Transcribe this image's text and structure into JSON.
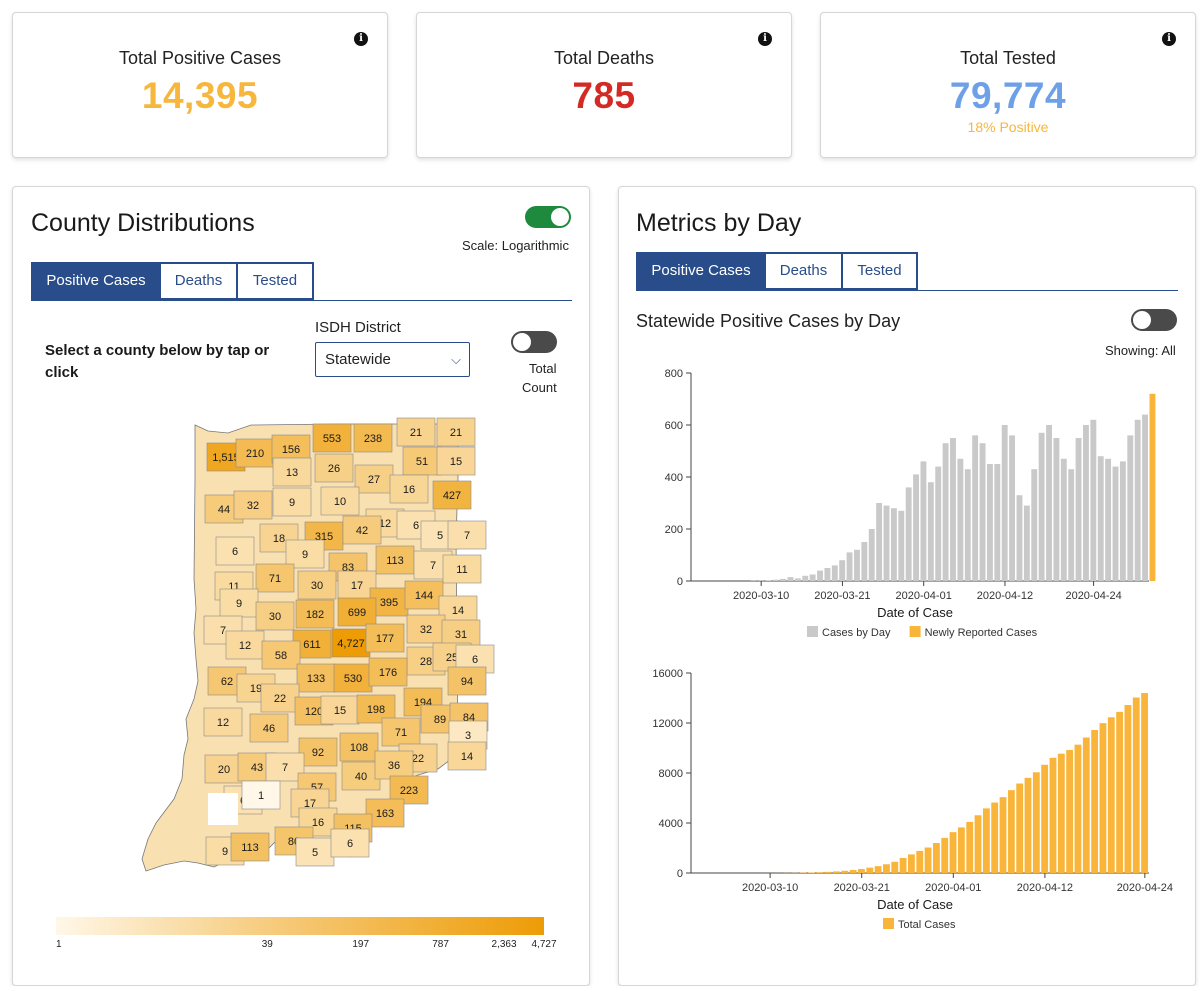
{
  "colors": {
    "positive": "#f6b73c",
    "deaths": "#d32a25",
    "tested": "#6ea0e8",
    "navy": "#284d8a",
    "gray_bar": "#c9c9c9",
    "orange_bar": "#f9b43a"
  },
  "stats": [
    {
      "title": "Total Positive Cases",
      "value": "14,395",
      "sub": ""
    },
    {
      "title": "Total Deaths",
      "value": "785",
      "sub": ""
    },
    {
      "title": "Total Tested",
      "value": "79,774",
      "sub": "18% Positive"
    }
  ],
  "info_icon": "i",
  "county": {
    "title": "County Distributions",
    "scale_label": "Scale: Logarithmic",
    "tabs": [
      "Positive Cases",
      "Deaths",
      "Tested"
    ],
    "select_prompt": "Select a county below by tap or click",
    "district_label": "ISDH District",
    "district_value": "Statewide",
    "chevron": "⌵",
    "total_count_label_1": "Total",
    "total_count_label_2": "Count",
    "legend_ticks": [
      "1",
      "39",
      "197",
      "787",
      "2,363",
      "4,727"
    ],
    "legend_tick_values": [
      1,
      39,
      197,
      787,
      2363,
      4727
    ],
    "map_labels": [
      [
        "1,515",
        1515
      ],
      [
        "210",
        210
      ],
      [
        "156",
        156
      ],
      [
        "553",
        553
      ],
      [
        "238",
        238
      ],
      [
        "21",
        21
      ],
      [
        "21",
        21
      ],
      [
        "13",
        13
      ],
      [
        "26",
        26
      ],
      [
        "51",
        51
      ],
      [
        "15",
        15
      ],
      [
        "27",
        27
      ],
      [
        "16",
        16
      ],
      [
        "427",
        427
      ],
      [
        "44",
        44
      ],
      [
        "32",
        32
      ],
      [
        "9",
        9
      ],
      [
        "10",
        10
      ],
      [
        "12",
        12
      ],
      [
        "6",
        6
      ],
      [
        "5",
        5
      ],
      [
        "7",
        7
      ],
      [
        "18",
        18
      ],
      [
        "315",
        315
      ],
      [
        "42",
        42
      ],
      [
        "6",
        6
      ],
      [
        "9",
        9
      ],
      [
        "83",
        83
      ],
      [
        "113",
        113
      ],
      [
        "7",
        7
      ],
      [
        "11",
        11
      ],
      [
        "71",
        71
      ],
      [
        "11",
        11
      ],
      [
        "30",
        30
      ],
      [
        "17",
        17
      ],
      [
        "395",
        395
      ],
      [
        "144",
        144
      ],
      [
        "9",
        9
      ],
      [
        "14",
        14
      ],
      [
        "30",
        30
      ],
      [
        "182",
        182
      ],
      [
        "699",
        699
      ],
      [
        "7",
        7
      ],
      [
        "12",
        12
      ],
      [
        "611",
        611
      ],
      [
        "4,727",
        4727
      ],
      [
        "177",
        177
      ],
      [
        "32",
        32
      ],
      [
        "31",
        31
      ],
      [
        "58",
        58
      ],
      [
        "28",
        28
      ],
      [
        "25",
        25
      ],
      [
        "6",
        6
      ],
      [
        "62",
        62
      ],
      [
        "19",
        19
      ],
      [
        "133",
        133
      ],
      [
        "530",
        530
      ],
      [
        "176",
        176
      ],
      [
        "94",
        94
      ],
      [
        "22",
        22
      ],
      [
        "194",
        194
      ],
      [
        "12",
        12
      ],
      [
        "120",
        120
      ],
      [
        "15",
        15
      ],
      [
        "198",
        198
      ],
      [
        "89",
        89
      ],
      [
        "84",
        84
      ],
      [
        "46",
        46
      ],
      [
        "71",
        71
      ],
      [
        "3",
        3
      ],
      [
        "92",
        92
      ],
      [
        "108",
        108
      ],
      [
        "14",
        14
      ],
      [
        "20",
        20
      ],
      [
        "43",
        43
      ],
      [
        "7",
        7
      ],
      [
        "22",
        22
      ],
      [
        "40",
        40
      ],
      [
        "36",
        36
      ],
      [
        "57",
        57
      ],
      [
        "223",
        223
      ],
      [
        "6",
        6
      ],
      [
        "1",
        1
      ],
      [
        "17",
        17
      ],
      [
        "163",
        163
      ],
      [
        "16",
        16
      ],
      [
        "115",
        115
      ],
      [
        "9",
        9
      ],
      [
        "113",
        113
      ],
      [
        "80",
        80
      ],
      [
        "5",
        5
      ],
      [
        "6",
        6
      ]
    ]
  },
  "metrics": {
    "title": "Metrics by Day",
    "tabs": [
      "Positive Cases",
      "Deaths",
      "Tested"
    ],
    "subtitle": "Statewide Positive Cases by Day",
    "showing_label": "Showing: All"
  },
  "chart_data": [
    {
      "type": "bar",
      "title": "Statewide Positive Cases by Day",
      "xlabel": "Date of Case",
      "ylabel": "",
      "ylim": [
        0,
        800
      ],
      "yticks": [
        0,
        200,
        400,
        600,
        800
      ],
      "xticks": [
        "2020-03-10",
        "2020-03-21",
        "2020-04-01",
        "2020-04-12",
        "2020-04-24"
      ],
      "start_date": "2020-03-01",
      "legend": [
        "Cases by Day",
        "Newly Reported Cases"
      ],
      "series": [
        {
          "name": "Cases by Day",
          "values": [
            0,
            0,
            0,
            0,
            0,
            0,
            0,
            0,
            1,
            1,
            3,
            5,
            8,
            15,
            10,
            20,
            25,
            40,
            50,
            60,
            80,
            110,
            120,
            150,
            200,
            300,
            290,
            280,
            270,
            360,
            410,
            460,
            380,
            440,
            530,
            550,
            470,
            430,
            560,
            530,
            450,
            450,
            600,
            560,
            330,
            290,
            430,
            570,
            600,
            550,
            470,
            430,
            550,
            600,
            620,
            480,
            470,
            440,
            460,
            560,
            620,
            640
          ]
        },
        {
          "name": "Newly Reported Cases",
          "values": [
            0,
            0,
            0,
            0,
            0,
            0,
            0,
            0,
            0,
            0,
            0,
            0,
            0,
            0,
            0,
            0,
            0,
            0,
            0,
            0,
            0,
            0,
            0,
            0,
            0,
            0,
            0,
            0,
            0,
            0,
            0,
            0,
            0,
            0,
            0,
            0,
            0,
            0,
            0,
            0,
            0,
            0,
            0,
            0,
            0,
            0,
            0,
            0,
            0,
            0,
            0,
            0,
            0,
            0,
            0,
            0,
            0,
            0,
            0,
            0,
            0,
            0,
            720
          ]
        }
      ]
    },
    {
      "type": "bar",
      "title": "",
      "xlabel": "Date of Case",
      "ylabel": "",
      "ylim": [
        0,
        16000
      ],
      "yticks": [
        0,
        4000,
        8000,
        12000,
        16000
      ],
      "xticks": [
        "2020-03-10",
        "2020-03-21",
        "2020-04-01",
        "2020-04-12",
        "2020-04-24"
      ],
      "legend": [
        "Total Cases"
      ],
      "series": [
        {
          "name": "Total Cases",
          "values": [
            0,
            0,
            0,
            0,
            0,
            0,
            0,
            0,
            1,
            2,
            5,
            10,
            18,
            33,
            43,
            63,
            88,
            128,
            178,
            238,
            318,
            428,
            548,
            698,
            898,
            1198,
            1488,
            1768,
            2038,
            2398,
            2808,
            3268,
            3648,
            4088,
            4618,
            5168,
            5638,
            6068,
            6628,
            7158,
            7608,
            8058,
            8658,
            9218,
            9548,
            9838,
            10268,
            10838,
            11438,
            11988,
            12458,
            12888,
            13438,
            14038,
            14395
          ]
        }
      ]
    }
  ]
}
